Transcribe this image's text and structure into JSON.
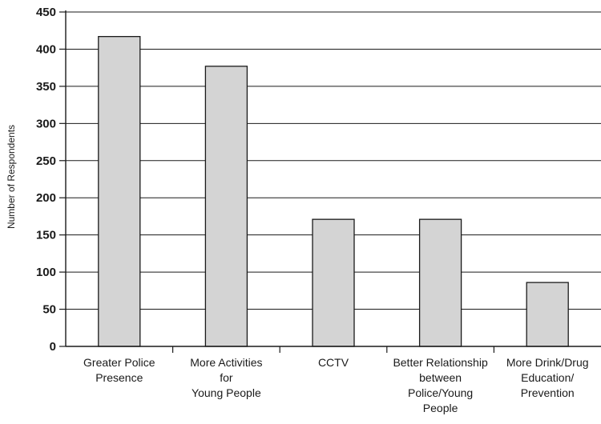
{
  "chart_data": {
    "type": "bar",
    "title": "",
    "xlabel": "",
    "ylabel": "Number of Respondents",
    "ylim": [
      0,
      450
    ],
    "yticks": [
      0,
      50,
      100,
      150,
      200,
      250,
      300,
      350,
      400,
      450
    ],
    "grid": true,
    "categories": [
      [
        "Greater Police",
        "Presence"
      ],
      [
        "More Activities",
        "for",
        "Young People"
      ],
      [
        "CCTV"
      ],
      [
        "Better Relationship",
        "between",
        "Police/Young",
        "People"
      ],
      [
        "More Drink/Drug",
        "Education/",
        "Prevention"
      ]
    ],
    "values": [
      417,
      377,
      171,
      171,
      86
    ],
    "colors": {
      "bar_fill": "#d4d4d4",
      "bar_stroke": "#1a1a1a",
      "grid": "#1a1a1a",
      "axis": "#1a1a1a"
    }
  }
}
